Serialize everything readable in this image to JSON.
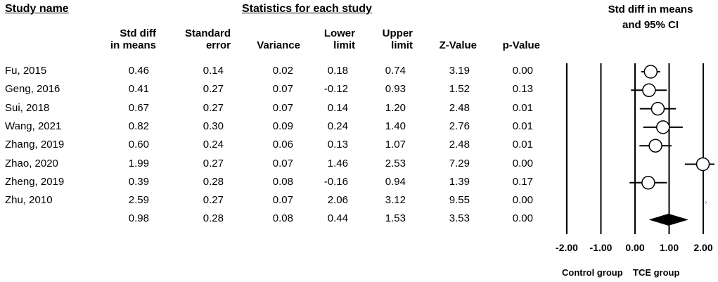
{
  "headers": {
    "study_name": "Study name",
    "statistics": "Statistics for each study",
    "plot_title_line1": "Std diff in means",
    "plot_title_line2": "and 95% CI"
  },
  "columns": [
    {
      "line1": "Std diff",
      "line2": "in means"
    },
    {
      "line1": "Standard",
      "line2": "error"
    },
    {
      "line1": "",
      "line2": "Variance"
    },
    {
      "line1": "Lower",
      "line2": "limit"
    },
    {
      "line1": "Upper",
      "line2": "limit"
    },
    {
      "line1": "",
      "line2": "Z-Value"
    },
    {
      "line1": "",
      "line2": "p-Value"
    }
  ],
  "rows": [
    {
      "name": "Fu, 2015",
      "values": [
        "0.46",
        "0.14",
        "0.02",
        "0.18",
        "0.74",
        "3.19",
        "0.00"
      ]
    },
    {
      "name": "Geng, 2016",
      "values": [
        "0.41",
        "0.27",
        "0.07",
        "-0.12",
        "0.93",
        "1.52",
        "0.13"
      ]
    },
    {
      "name": "Sui, 2018",
      "values": [
        "0.67",
        "0.27",
        "0.07",
        "0.14",
        "1.20",
        "2.48",
        "0.01"
      ]
    },
    {
      "name": "Wang, 2021",
      "values": [
        "0.82",
        "0.30",
        "0.09",
        "0.24",
        "1.40",
        "2.76",
        "0.01"
      ]
    },
    {
      "name": "Zhang, 2019",
      "values": [
        "0.60",
        "0.24",
        "0.06",
        "0.13",
        "1.07",
        "2.48",
        "0.01"
      ]
    },
    {
      "name": "Zhao, 2020",
      "values": [
        "1.99",
        "0.27",
        "0.07",
        "1.46",
        "2.53",
        "7.29",
        "0.00"
      ]
    },
    {
      "name": "Zheng, 2019",
      "values": [
        "0.39",
        "0.28",
        "0.08",
        "-0.16",
        "0.94",
        "1.39",
        "0.17"
      ]
    },
    {
      "name": "Zhu, 2010",
      "values": [
        "2.59",
        "0.27",
        "0.07",
        "2.06",
        "3.12",
        "9.55",
        "0.00"
      ]
    },
    {
      "name": "",
      "values": [
        "0.98",
        "0.28",
        "0.08",
        "0.44",
        "1.53",
        "3.53",
        "0.00"
      ]
    }
  ],
  "footer": {
    "left": "Control group",
    "right": "TCE group"
  },
  "chart_data": {
    "type": "forest",
    "title": "Std diff in means and 95% CI",
    "xlim": [
      -2.0,
      2.0
    ],
    "x_ticks": [
      -2.0,
      -1.0,
      0.0,
      1.0,
      2.0
    ],
    "x_tick_labels": [
      "-2.00",
      "-1.00",
      "0.00",
      "1.00",
      "2.00"
    ],
    "studies": [
      {
        "name": "Fu, 2015",
        "estimate": 0.46,
        "lower": 0.18,
        "upper": 0.74
      },
      {
        "name": "Geng, 2016",
        "estimate": 0.41,
        "lower": -0.12,
        "upper": 0.93
      },
      {
        "name": "Sui, 2018",
        "estimate": 0.67,
        "lower": 0.14,
        "upper": 1.2
      },
      {
        "name": "Wang, 2021",
        "estimate": 0.82,
        "lower": 0.24,
        "upper": 1.4
      },
      {
        "name": "Zhang, 2019",
        "estimate": 0.6,
        "lower": 0.13,
        "upper": 1.07
      },
      {
        "name": "Zhao, 2020",
        "estimate": 1.99,
        "lower": 1.46,
        "upper": 2.53
      },
      {
        "name": "Zheng, 2019",
        "estimate": 0.39,
        "lower": -0.16,
        "upper": 0.94
      },
      {
        "name": "Zhu, 2010",
        "estimate": 2.59,
        "lower": 2.06,
        "upper": 3.12
      }
    ],
    "summary": {
      "estimate": 0.98,
      "lower": 0.44,
      "upper": 1.53
    }
  }
}
